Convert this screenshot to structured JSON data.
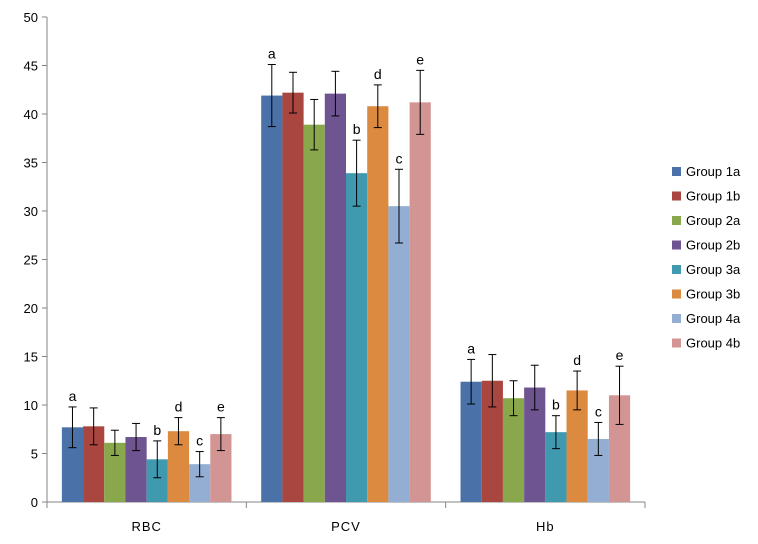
{
  "chart_data": {
    "type": "bar",
    "ylim": [
      0,
      50
    ],
    "ytick_step": 5,
    "grid": false,
    "legend_position": "right",
    "categories": [
      "RBC",
      "PCV",
      "Hb"
    ],
    "series": [
      {
        "name": "Group 1a",
        "color": "#4A72A8",
        "values": [
          7.7,
          41.9,
          12.4
        ],
        "errors": [
          2.1,
          3.2,
          2.3
        ]
      },
      {
        "name": "Group 1b",
        "color": "#A8463F",
        "values": [
          7.8,
          42.2,
          12.5
        ],
        "errors": [
          1.9,
          2.1,
          2.7
        ]
      },
      {
        "name": "Group 2a",
        "color": "#89A84B",
        "values": [
          6.1,
          38.9,
          10.7
        ],
        "errors": [
          1.3,
          2.6,
          1.8
        ]
      },
      {
        "name": "Group 2b",
        "color": "#6E5490",
        "values": [
          6.7,
          42.1,
          11.8
        ],
        "errors": [
          1.4,
          2.3,
          2.3
        ]
      },
      {
        "name": "Group 3a",
        "color": "#3F9AB0",
        "values": [
          4.4,
          33.9,
          7.2
        ],
        "errors": [
          1.9,
          3.4,
          1.7
        ]
      },
      {
        "name": "Group 3b",
        "color": "#DC8A3F",
        "values": [
          7.3,
          40.8,
          11.5
        ],
        "errors": [
          1.4,
          2.2,
          2.0
        ]
      },
      {
        "name": "Group 4a",
        "color": "#94AED3",
        "values": [
          3.9,
          30.5,
          6.5
        ],
        "errors": [
          1.3,
          3.8,
          1.7
        ]
      },
      {
        "name": "Group 4b",
        "color": "#D39594",
        "values": [
          7.0,
          41.2,
          11.0
        ],
        "errors": [
          1.7,
          3.3,
          3.0
        ]
      }
    ],
    "annotations": [
      {
        "category": "RBC",
        "series": "Group 1a",
        "label": "a"
      },
      {
        "category": "RBC",
        "series": "Group 3a",
        "label": "b"
      },
      {
        "category": "RBC",
        "series": "Group 4a",
        "label": "c"
      },
      {
        "category": "RBC",
        "series": "Group 3b",
        "label": "d"
      },
      {
        "category": "RBC",
        "series": "Group 4b",
        "label": "e"
      },
      {
        "category": "PCV",
        "series": "Group 1a",
        "label": "a"
      },
      {
        "category": "PCV",
        "series": "Group 3a",
        "label": "b"
      },
      {
        "category": "PCV",
        "series": "Group 4a",
        "label": "c"
      },
      {
        "category": "PCV",
        "series": "Group 3b",
        "label": "d"
      },
      {
        "category": "PCV",
        "series": "Group 4b",
        "label": "e"
      },
      {
        "category": "Hb",
        "series": "Group 1a",
        "label": "a"
      },
      {
        "category": "Hb",
        "series": "Group 3a",
        "label": "b"
      },
      {
        "category": "Hb",
        "series": "Group 4a",
        "label": "c"
      },
      {
        "category": "Hb",
        "series": "Group 3b",
        "label": "d"
      },
      {
        "category": "Hb",
        "series": "Group 4b",
        "label": "e"
      }
    ]
  }
}
